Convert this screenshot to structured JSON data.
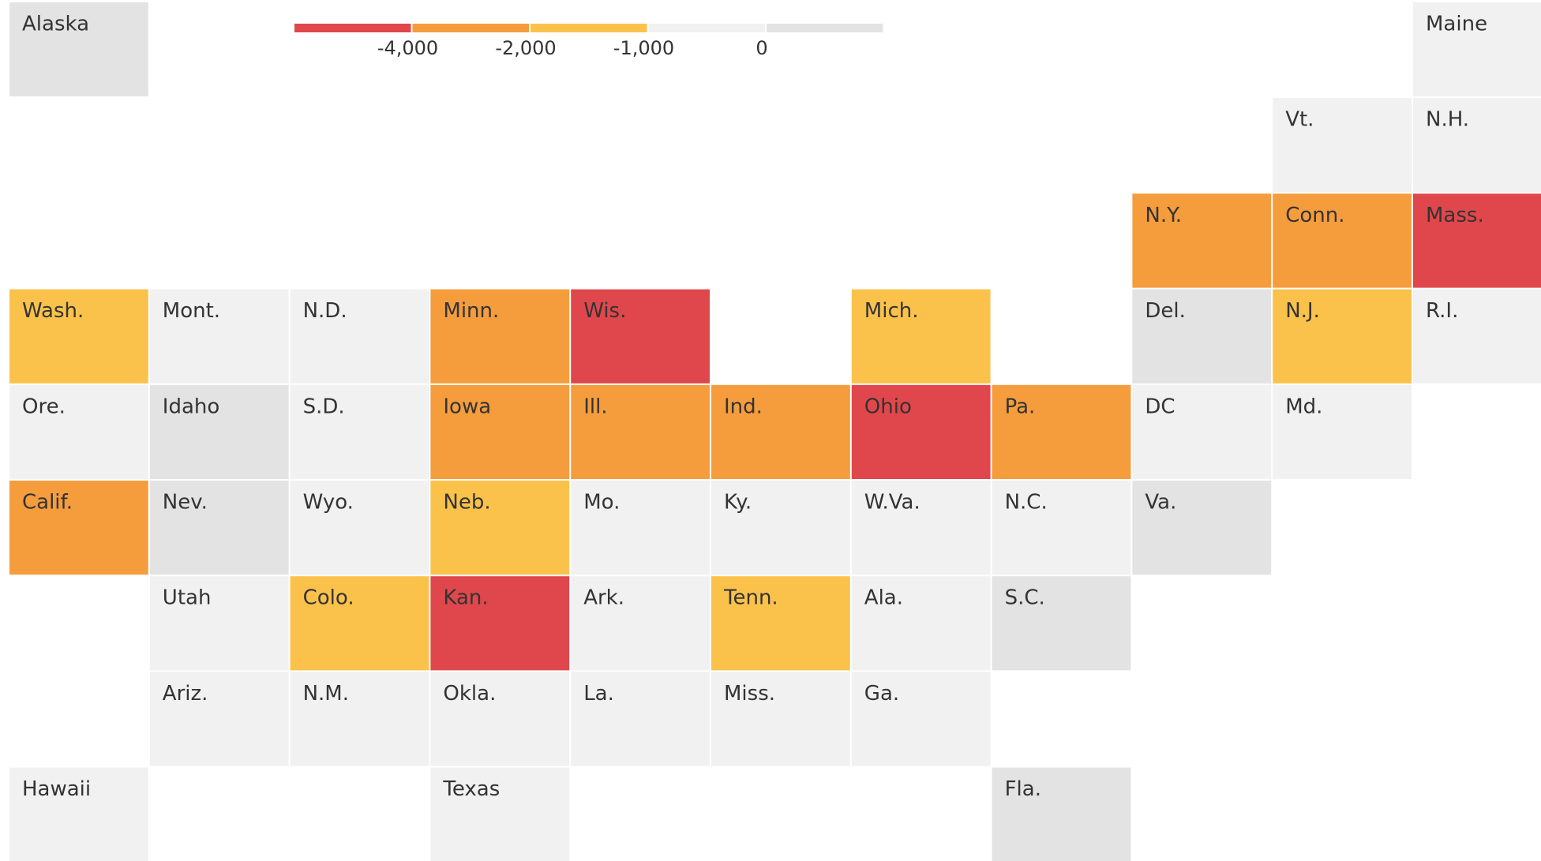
{
  "legend": {
    "colors": [
      "#e0474c",
      "#f59d3d",
      "#fbc24b",
      "#f1f1f1",
      "#e3e3e3"
    ],
    "ticks": [
      {
        "value": -4000,
        "label": "-4,000"
      },
      {
        "value": -2000,
        "label": "-2,000"
      },
      {
        "value": -1000,
        "label": "-1,000"
      },
      0
    ]
  },
  "states": [
    {
      "label": "Alaska",
      "bin": 4
    },
    {
      "label": "Maine",
      "bin": 3
    },
    {
      "label": "Vt.",
      "bin": 3
    },
    {
      "label": "N.H.",
      "bin": 3
    },
    {
      "label": "N.Y.",
      "bin": 1
    },
    {
      "label": "Conn.",
      "bin": 1
    },
    {
      "label": "Mass.",
      "bin": 0
    },
    {
      "label": "Wash.",
      "bin": 2
    },
    {
      "label": "Mont.",
      "bin": 3
    },
    {
      "label": "N.D.",
      "bin": 3
    },
    {
      "label": "Minn.",
      "bin": 1
    },
    {
      "label": "Wis.",
      "bin": 0
    },
    {
      "label": "Mich.",
      "bin": 2
    },
    {
      "label": "Del.",
      "bin": 4
    },
    {
      "label": "N.J.",
      "bin": 2
    },
    {
      "label": "R.I.",
      "bin": 3
    },
    {
      "label": "Ore.",
      "bin": 3
    },
    {
      "label": "Idaho",
      "bin": 4
    },
    {
      "label": "S.D.",
      "bin": 3
    },
    {
      "label": "Iowa",
      "bin": 1
    },
    {
      "label": "Ill.",
      "bin": 1
    },
    {
      "label": "Ind.",
      "bin": 1
    },
    {
      "label": "Ohio",
      "bin": 0
    },
    {
      "label": "Pa.",
      "bin": 1
    },
    {
      "label": "DC",
      "bin": 3
    },
    {
      "label": "Md.",
      "bin": 3
    },
    {
      "label": "Calif.",
      "bin": 1
    },
    {
      "label": "Nev.",
      "bin": 4
    },
    {
      "label": "Wyo.",
      "bin": 3
    },
    {
      "label": "Neb.",
      "bin": 2
    },
    {
      "label": "Mo.",
      "bin": 3
    },
    {
      "label": "Ky.",
      "bin": 3
    },
    {
      "label": "W.Va.",
      "bin": 3
    },
    {
      "label": "N.C.",
      "bin": 3
    },
    {
      "label": "Va.",
      "bin": 4
    },
    {
      "label": "Utah",
      "bin": 3
    },
    {
      "label": "Colo.",
      "bin": 2
    },
    {
      "label": "Kan.",
      "bin": 0
    },
    {
      "label": "Ark.",
      "bin": 3
    },
    {
      "label": "Tenn.",
      "bin": 2
    },
    {
      "label": "Ala.",
      "bin": 3
    },
    {
      "label": "S.C.",
      "bin": 4
    },
    {
      "label": "Ariz.",
      "bin": 3
    },
    {
      "label": "N.M.",
      "bin": 3
    },
    {
      "label": "Okla.",
      "bin": 3
    },
    {
      "label": "La.",
      "bin": 3
    },
    {
      "label": "Miss.",
      "bin": 3
    },
    {
      "label": "Ga.",
      "bin": 3
    },
    {
      "label": "Hawaii",
      "bin": 3
    },
    {
      "label": "Texas",
      "bin": 3
    },
    {
      "label": "Fla.",
      "bin": 4
    }
  ]
}
